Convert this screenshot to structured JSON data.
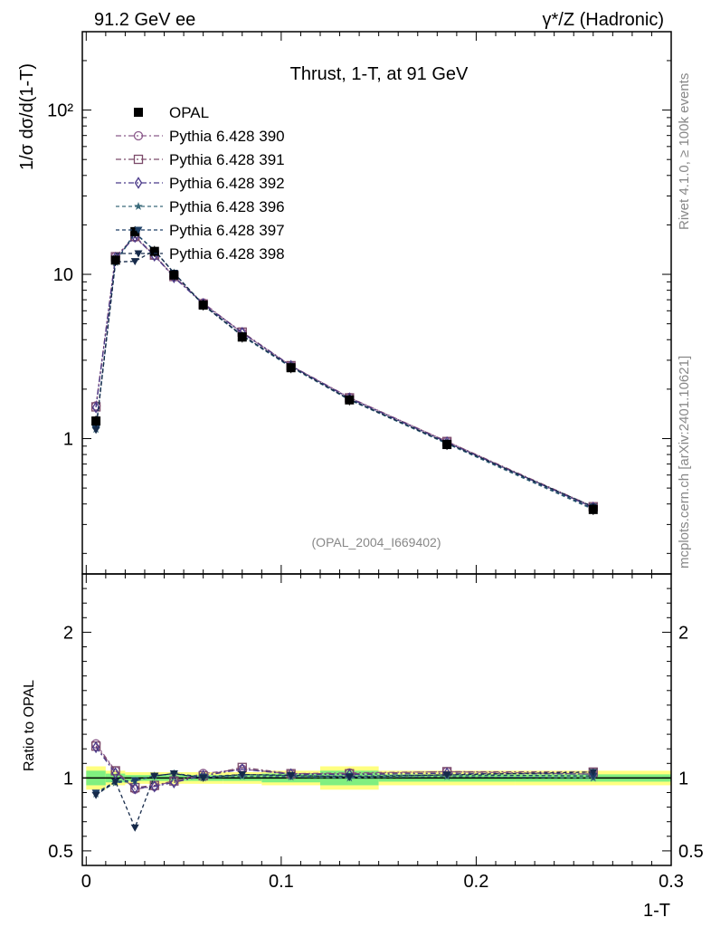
{
  "header": {
    "left": "91.2 GeV ee",
    "right": "γ*/Z (Hadronic)"
  },
  "side": {
    "rivet": "Rivet 4.1.0, ≥ 100k events",
    "mcplots": "mcplots.cern.ch [arXiv:2401.10621]"
  },
  "chart_data": {
    "type": "line",
    "title": "Thrust, 1-T, at 91 GeV",
    "analysis_id": "(OPAL_2004_I669402)",
    "xlabel": "1-T",
    "ylabel": "1/σ  dσ/d(1-T)",
    "ratio_ylabel": "Ratio to OPAL",
    "xlim": [
      -0.002,
      0.3
    ],
    "ylim_log": [
      0.15,
      300
    ],
    "ratio_ylim": [
      0.4,
      2.4
    ],
    "x_ticks": [
      {
        "v": 0,
        "label": "0"
      },
      {
        "v": 0.1,
        "label": "0.1"
      },
      {
        "v": 0.2,
        "label": "0.2"
      },
      {
        "v": 0.3,
        "label": "0.3"
      }
    ],
    "y_ticks": [
      {
        "v": 1,
        "label": "1"
      },
      {
        "v": 10,
        "label": "10"
      },
      {
        "v": 100,
        "label": "10²"
      }
    ],
    "ratio_ticks": [
      {
        "v": 0.5,
        "label": "0.5"
      },
      {
        "v": 1,
        "label": "1"
      },
      {
        "v": 2,
        "label": "2"
      }
    ],
    "x": [
      0.005,
      0.015,
      0.025,
      0.035,
      0.045,
      0.06,
      0.08,
      0.105,
      0.135,
      0.185,
      0.26
    ],
    "reference": {
      "name": "OPAL",
      "values": [
        1.28,
        12.2,
        18.2,
        13.8,
        9.9,
        6.5,
        4.15,
        2.7,
        1.72,
        0.92,
        0.37
      ],
      "band_edges": [
        0,
        0.01,
        0.02,
        0.03,
        0.04,
        0.05,
        0.07,
        0.09,
        0.12,
        0.15,
        0.22,
        0.3
      ],
      "band_stat": [
        0.05,
        0.03,
        0.02,
        0.02,
        0.02,
        0.02,
        0.02,
        0.03,
        0.05,
        0.025,
        0.025
      ],
      "band_total": [
        0.08,
        0.05,
        0.04,
        0.04,
        0.04,
        0.04,
        0.04,
        0.05,
        0.08,
        0.05,
        0.05
      ]
    },
    "series": [
      {
        "name": "Pythia 6.428 390",
        "color": "#8b5a8b",
        "marker": "circle",
        "dash": "6,3,2,3",
        "values": [
          1.58,
          12.8,
          16.8,
          13.0,
          9.7,
          6.7,
          4.4,
          2.78,
          1.78,
          0.96,
          0.38
        ]
      },
      {
        "name": "Pythia 6.428 391",
        "color": "#7b4a6a",
        "marker": "square",
        "dash": "6,3,2,3",
        "values": [
          1.56,
          12.8,
          17.0,
          13.1,
          9.7,
          6.6,
          4.45,
          2.78,
          1.77,
          0.96,
          0.385
        ]
      },
      {
        "name": "Pythia 6.428 392",
        "color": "#4b3a8a",
        "marker": "diamond",
        "dash": "6,3,2,3",
        "values": [
          1.55,
          12.6,
          16.9,
          13.0,
          9.6,
          6.6,
          4.4,
          2.77,
          1.76,
          0.95,
          0.38
        ]
      },
      {
        "name": "Pythia 6.428 396",
        "color": "#3a6a7a",
        "marker": "star",
        "dash": "4,3",
        "values": [
          1.14,
          11.8,
          17.8,
          14.0,
          10.2,
          6.5,
          4.2,
          2.72,
          1.72,
          0.93,
          0.37
        ]
      },
      {
        "name": "Pythia 6.428 397",
        "color": "#1e3f66",
        "marker": "triangle-down",
        "dash": "4,3",
        "values": [
          1.15,
          11.9,
          17.9,
          14.0,
          10.2,
          6.55,
          4.25,
          2.74,
          1.74,
          0.94,
          0.375
        ]
      },
      {
        "name": "Pythia 6.428 398",
        "color": "#162a4a",
        "marker": "triangle-down",
        "dash": "4,3",
        "values": [
          1.13,
          11.9,
          12.0,
          14.0,
          10.2,
          6.5,
          4.25,
          2.75,
          1.73,
          0.94,
          0.385
        ]
      }
    ]
  }
}
